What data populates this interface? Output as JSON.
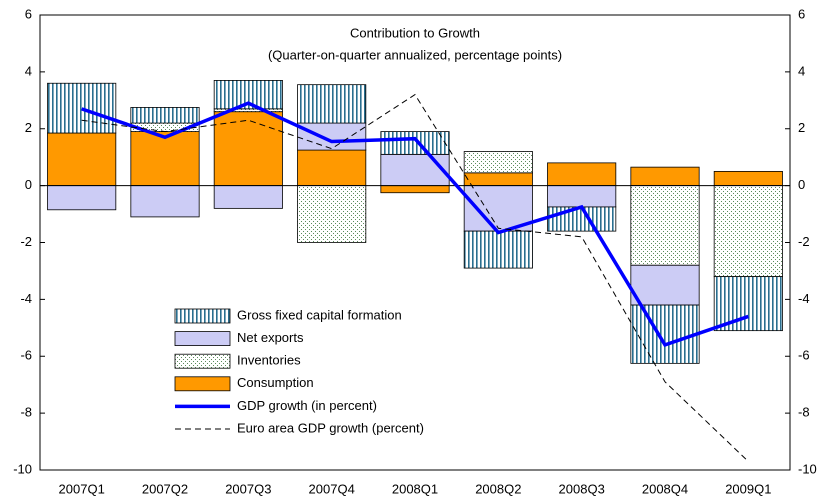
{
  "chart_data": {
    "type": "bar",
    "title": "Contribution to Growth",
    "subtitle": "(Quarter-on-quarter annualized, percentage points)",
    "categories": [
      "2007Q1",
      "2007Q2",
      "2007Q3",
      "2007Q4",
      "2008Q1",
      "2008Q2",
      "2008Q3",
      "2008Q4",
      "2009Q1"
    ],
    "series": [
      {
        "name": "Consumption",
        "type": "bar",
        "color": "#ff9900",
        "values": [
          1.85,
          1.9,
          2.6,
          1.25,
          -0.25,
          0.45,
          0.8,
          0.65,
          0.5
        ]
      },
      {
        "name": "Inventories",
        "type": "bar",
        "color": "#c8e6c8",
        "pattern": "dots",
        "values": [
          0,
          0.3,
          0.1,
          -2.0,
          0,
          0.75,
          0,
          -2.8,
          -3.2
        ]
      },
      {
        "name": "Net exports",
        "type": "bar",
        "color": "#ccccf5",
        "values": [
          -0.85,
          -1.1,
          -0.8,
          0.95,
          1.1,
          -1.6,
          -0.75,
          -1.4,
          0
        ]
      },
      {
        "name": "Gross fixed capital formation",
        "type": "bar",
        "color": "#2a6f8f",
        "pattern": "vertical-lines",
        "values": [
          1.75,
          0.55,
          1.0,
          1.35,
          0.8,
          -1.3,
          -0.85,
          -2.05,
          -1.9
        ]
      },
      {
        "name": "GDP growth (in percent)",
        "type": "line",
        "color": "#0000ff",
        "values": [
          2.7,
          1.7,
          2.9,
          1.55,
          1.65,
          -1.65,
          -0.75,
          -5.6,
          -4.6
        ]
      },
      {
        "name": "Euro area GDP growth (percent)",
        "type": "line",
        "color": "#000000",
        "dashed": true,
        "values": [
          2.3,
          1.9,
          2.3,
          1.3,
          3.2,
          -1.5,
          -1.8,
          -6.9,
          -9.7
        ]
      }
    ],
    "legend_order": [
      3,
      2,
      1,
      0,
      4,
      5
    ],
    "legend": "lower left",
    "ylim": [
      -10,
      6
    ],
    "yticks": [
      -10,
      -8,
      -6,
      -4,
      -2,
      0,
      2,
      4,
      6
    ],
    "y2lim": [
      -10,
      6
    ],
    "y2ticks": [
      -10,
      -8,
      -6,
      -4,
      -2,
      0,
      2,
      4,
      6
    ]
  }
}
